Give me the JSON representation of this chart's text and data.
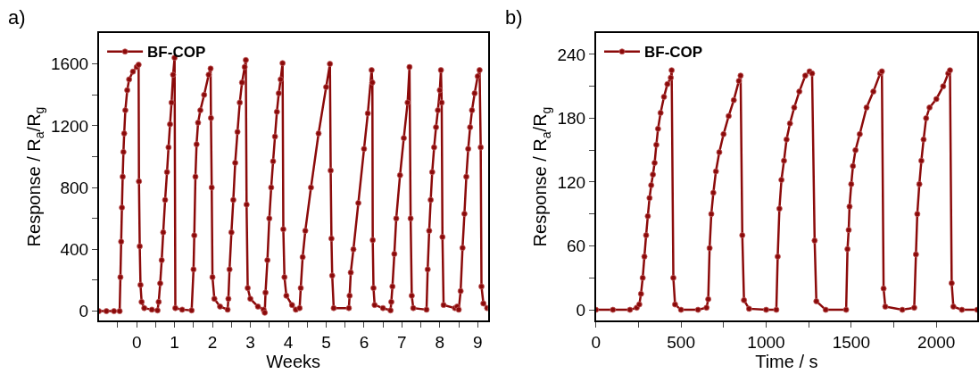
{
  "chart_data": [
    {
      "type": "line",
      "annotations": [
        "a)"
      ],
      "xlabel": "Weeks",
      "ylabel": "Response / R$_{a}$/R$_{g}$",
      "legend": "top left",
      "marker": "circle",
      "line_style": "solid",
      "xlim": [
        -1.0,
        9.27
      ],
      "ylim": [
        -60,
        1800
      ],
      "xticks": [
        {
          "value": -0.5,
          "label": null
        },
        0,
        {
          "value": 0.5,
          "label": null
        },
        1,
        {
          "value": 1.5,
          "label": null
        },
        2,
        {
          "value": 2.5,
          "label": null
        },
        3,
        {
          "value": 3.5,
          "label": null
        },
        4,
        {
          "value": 4.5,
          "label": null
        },
        5,
        {
          "value": 5.5,
          "label": null
        },
        6,
        {
          "value": 6.5,
          "label": null
        },
        7,
        {
          "value": 7.5,
          "label": null
        },
        8,
        {
          "value": 8.5,
          "label": null
        },
        9
      ],
      "yticks": [
        0,
        {
          "value": 200,
          "label": null
        },
        400,
        {
          "value": 600,
          "label": null
        },
        800,
        {
          "value": 1000,
          "label": null
        },
        1200,
        {
          "value": 1400,
          "label": null
        },
        1600
      ],
      "series": [
        {
          "name": "BF-COP",
          "color": "#8b0a0a",
          "x": [
            -1.0,
            -0.8,
            -0.6,
            -0.45,
            -0.43,
            -0.41,
            -0.39,
            -0.37,
            -0.35,
            -0.33,
            -0.3,
            -0.25,
            -0.2,
            -0.1,
            0,
            0.05,
            0.06,
            0.08,
            0.1,
            0.13,
            0.2,
            0.4,
            0.55,
            0.58,
            0.62,
            0.66,
            0.7,
            0.75,
            0.8,
            0.84,
            0.88,
            0.92,
            0.96,
            1.0,
            1.02,
            1.2,
            1.45,
            1.5,
            1.52,
            1.55,
            1.58,
            1.62,
            1.68,
            1.78,
            1.9,
            1.95,
            1.96,
            1.98,
            2.0,
            2.05,
            2.2,
            2.4,
            2.42,
            2.45,
            2.5,
            2.55,
            2.6,
            2.66,
            2.72,
            2.78,
            2.85,
            2.88,
            2.9,
            2.93,
            3.0,
            3.2,
            3.35,
            3.38,
            3.4,
            3.45,
            3.5,
            3.55,
            3.6,
            3.65,
            3.7,
            3.75,
            3.8,
            3.85,
            3.87,
            3.9,
            3.95,
            4.1,
            4.2,
            4.3,
            4.33,
            4.38,
            4.45,
            4.6,
            4.8,
            5.0,
            5.1,
            5.12,
            5.14,
            5.16,
            5.2,
            5.6,
            5.62,
            5.65,
            5.72,
            5.85,
            6.0,
            6.1,
            6.2,
            6.22,
            6.23,
            6.25,
            6.28,
            6.5,
            6.7,
            6.72,
            6.75,
            6.8,
            6.85,
            6.95,
            7.05,
            7.15,
            7.2,
            7.23,
            7.26,
            7.3,
            7.65,
            7.68,
            7.72,
            7.76,
            7.8,
            7.85,
            7.9,
            7.95,
            8.0,
            8.03,
            8.05,
            8.07,
            8.1,
            8.4,
            8.46,
            8.5,
            8.55,
            8.6,
            8.65,
            8.7,
            8.75,
            8.8,
            8.85,
            8.92,
            9.0,
            9.05,
            9.08,
            9.1,
            9.15,
            9.25
          ],
          "values": [
            0,
            0,
            0,
            0,
            220,
            450,
            670,
            870,
            1030,
            1150,
            1300,
            1430,
            1500,
            1550,
            1580,
            1595,
            840,
            420,
            170,
            60,
            20,
            10,
            5,
            60,
            180,
            330,
            510,
            720,
            900,
            1060,
            1210,
            1350,
            1530,
            1640,
            20,
            10,
            5,
            270,
            490,
            870,
            1080,
            1220,
            1300,
            1400,
            1530,
            1570,
            1250,
            800,
            220,
            80,
            30,
            10,
            80,
            270,
            510,
            720,
            960,
            1160,
            1350,
            1480,
            1580,
            1625,
            690,
            150,
            80,
            30,
            10,
            -10,
            120,
            330,
            600,
            800,
            970,
            1130,
            1290,
            1410,
            1500,
            1605,
            530,
            220,
            100,
            40,
            10,
            20,
            150,
            350,
            520,
            800,
            1150,
            1450,
            1600,
            910,
            470,
            230,
            20,
            20,
            100,
            250,
            400,
            700,
            1050,
            1280,
            1560,
            1480,
            460,
            150,
            40,
            20,
            5,
            60,
            160,
            370,
            600,
            880,
            1120,
            1350,
            1580,
            600,
            100,
            20,
            10,
            270,
            520,
            720,
            900,
            1060,
            1190,
            1300,
            1430,
            1560,
            1350,
            480,
            40,
            20,
            30,
            10,
            130,
            410,
            630,
            870,
            1050,
            1190,
            1300,
            1410,
            1520,
            1560,
            1060,
            160,
            50,
            20
          ]
        }
      ]
    },
    {
      "type": "line",
      "annotations": [
        "b)"
      ],
      "xlabel": "Time / s",
      "ylabel": "Response / R$_{a}$/R$_{g}$",
      "legend": "top left",
      "marker": "circle",
      "line_style": "solid",
      "xlim": [
        0,
        2240
      ],
      "ylim": [
        -10,
        260
      ],
      "xticks": [
        0,
        {
          "value": 250,
          "label": null
        },
        500,
        {
          "value": 750,
          "label": null
        },
        1000,
        {
          "value": 1250,
          "label": null
        },
        1500,
        {
          "value": 1750,
          "label": null
        },
        2000
      ],
      "yticks": [
        0,
        {
          "value": 30,
          "label": null
        },
        60,
        {
          "value": 90,
          "label": null
        },
        120,
        {
          "value": 150,
          "label": null
        },
        180,
        {
          "value": 210,
          "label": null
        },
        240
      ],
      "series": [
        {
          "name": "BF-COP",
          "color": "#8b0a0a",
          "x": [
            0,
            100,
            200,
            240,
            255,
            265,
            275,
            285,
            295,
            305,
            315,
            325,
            335,
            345,
            355,
            365,
            380,
            400,
            420,
            440,
            445,
            455,
            465,
            500,
            600,
            650,
            660,
            668,
            678,
            690,
            705,
            725,
            750,
            780,
            810,
            840,
            850,
            860,
            870,
            900,
            1000,
            1060,
            1068,
            1078,
            1090,
            1105,
            1120,
            1140,
            1165,
            1195,
            1230,
            1255,
            1270,
            1285,
            1295,
            1350,
            1470,
            1478,
            1485,
            1490,
            1500,
            1510,
            1525,
            1550,
            1590,
            1630,
            1670,
            1680,
            1690,
            1700,
            1800,
            1870,
            1880,
            1888,
            1900,
            1912,
            1925,
            1940,
            1960,
            2000,
            2040,
            2070,
            2080,
            2090,
            2100,
            2150,
            2240
          ],
          "values": [
            0,
            0,
            0,
            2,
            5,
            15,
            30,
            50,
            70,
            88,
            105,
            117,
            127,
            138,
            155,
            170,
            185,
            200,
            212,
            218,
            225,
            30,
            5,
            0,
            0,
            2,
            10,
            58,
            90,
            110,
            130,
            148,
            165,
            182,
            197,
            215,
            220,
            70,
            9,
            1,
            0,
            0,
            50,
            95,
            122,
            140,
            160,
            175,
            190,
            205,
            220,
            224,
            222,
            65,
            8,
            0,
            0,
            57,
            75,
            97,
            118,
            135,
            150,
            165,
            190,
            205,
            222,
            224,
            20,
            3,
            0,
            2,
            52,
            90,
            118,
            140,
            160,
            180,
            190,
            198,
            210,
            222,
            225,
            25,
            3,
            0,
            0
          ]
        }
      ]
    }
  ]
}
